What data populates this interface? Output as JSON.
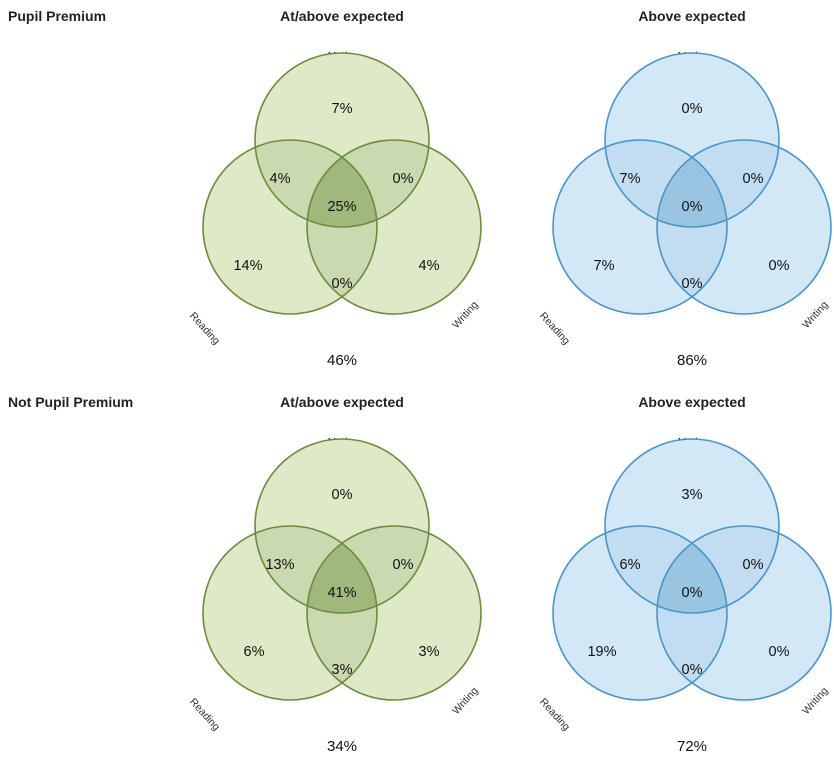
{
  "rows": [
    {
      "label": "Pupil Premium",
      "panels": [
        {
          "title": "At/above expected",
          "scheme": "green",
          "set_labels": {
            "maths": "Maths",
            "reading": "Reading",
            "writing": "Writing"
          },
          "regions": {
            "maths_only": "7%",
            "maths_reading": "4%",
            "maths_writing": "0%",
            "all_three": "25%",
            "reading_only": "14%",
            "writing_only": "4%",
            "reading_writing": "0%"
          },
          "total": "46%"
        },
        {
          "title": "Above expected",
          "scheme": "blue",
          "set_labels": {
            "maths": "Maths",
            "reading": "Reading",
            "writing": "Writing"
          },
          "regions": {
            "maths_only": "0%",
            "maths_reading": "7%",
            "maths_writing": "0%",
            "all_three": "0%",
            "reading_only": "7%",
            "writing_only": "0%",
            "reading_writing": "0%"
          },
          "total": "86%"
        }
      ]
    },
    {
      "label": "Not Pupil Premium",
      "panels": [
        {
          "title": "At/above expected",
          "scheme": "green",
          "set_labels": {
            "maths": "Maths",
            "reading": "Reading",
            "writing": "Writing"
          },
          "regions": {
            "maths_only": "0%",
            "maths_reading": "13%",
            "maths_writing": "0%",
            "all_three": "41%",
            "reading_only": "6%",
            "writing_only": "3%",
            "reading_writing": "3%"
          },
          "total": "34%"
        },
        {
          "title": "Above expected",
          "scheme": "blue",
          "set_labels": {
            "maths": "Maths",
            "reading": "Reading",
            "writing": "Writing"
          },
          "regions": {
            "maths_only": "3%",
            "maths_reading": "6%",
            "maths_writing": "0%",
            "all_three": "0%",
            "reading_only": "19%",
            "writing_only": "0%",
            "reading_writing": "0%"
          },
          "total": "72%"
        }
      ]
    }
  ],
  "colors": {
    "green_fill": "#dfe9c8",
    "green_stroke": "#6b8c3e",
    "blue_fill": "#d3e8f7",
    "blue_stroke": "#4a94c6"
  }
}
